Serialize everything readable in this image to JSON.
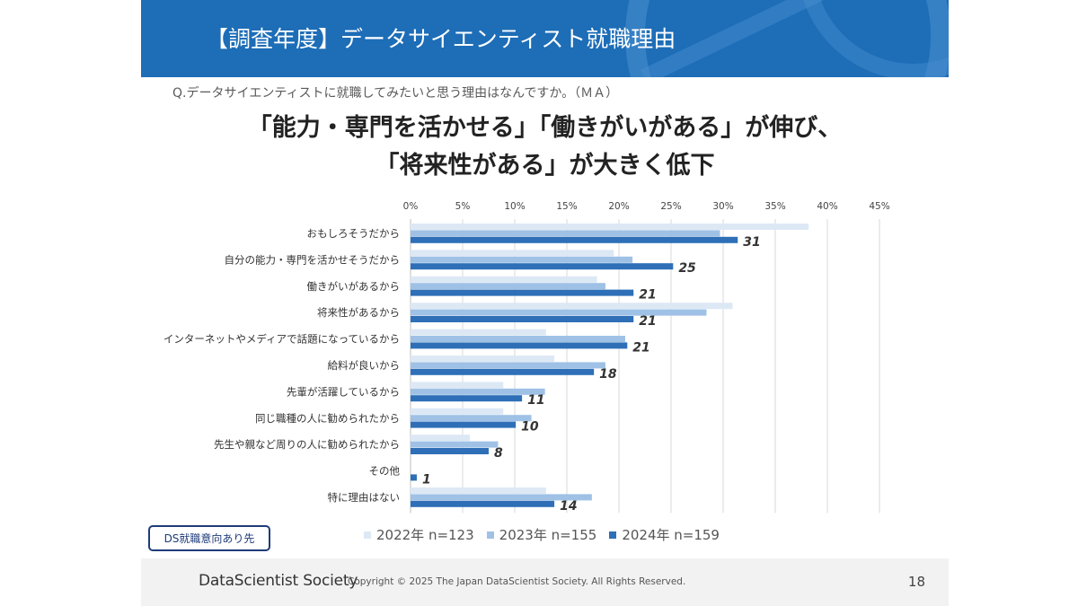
{
  "header": {
    "title": "【調査年度】データサイエンティスト就職理由",
    "accent_color": "#1d6db7"
  },
  "question": "Q.データサイエンティストに就職してみたいと思う理由はなんですか。（ＭＡ）",
  "headline": {
    "line1": "「能力・専門を活かせる」「働きがいがある」が伸び、",
    "line2": "「将来性がある」が大きく低下"
  },
  "badge": "DS就職意向あり先",
  "chart_data": {
    "type": "bar",
    "orientation": "horizontal",
    "categories": [
      "おもしろそうだから",
      "自分の能力・専門を活かせそうだから",
      "働きがいがあるから",
      "将来性があるから",
      "インターネットやメディアで話題になっているから",
      "給料が良いから",
      "先輩が活躍しているから",
      "同じ職種の人に勧められたから",
      "先生や親など周りの人に勧められたから",
      "その他",
      "特に理由はない"
    ],
    "series": [
      {
        "name": "2022年 n=123",
        "color": "#dde8f5",
        "values": [
          38.2,
          19.5,
          17.9,
          30.9,
          13.0,
          13.8,
          8.9,
          8.9,
          5.7,
          0,
          13.0
        ]
      },
      {
        "name": "2023年 n=155",
        "color": "#9fc1e6",
        "values": [
          29.7,
          21.3,
          18.7,
          28.4,
          20.6,
          18.7,
          12.9,
          11.6,
          8.4,
          0,
          17.4
        ]
      },
      {
        "name": "2024年 n=159",
        "color": "#2e6fb7",
        "values": [
          31.4,
          25.2,
          21.4,
          21.4,
          20.8,
          17.6,
          10.7,
          10.1,
          7.5,
          0.6,
          13.8
        ]
      }
    ],
    "data_labels": [
      "31",
      "25",
      "21",
      "21",
      "21",
      "18",
      "11",
      "10",
      "8",
      "1",
      "14"
    ],
    "x_ticks": [
      0,
      5,
      10,
      15,
      20,
      25,
      30,
      35,
      40,
      45
    ],
    "tick_suffix": "%",
    "xlim": [
      0,
      45
    ],
    "grid": true,
    "legend_position": "bottom"
  },
  "footer": {
    "brand": "DataScientist Society",
    "copyright": "Copyright © 2025  The Japan DataScientist Society. All Rights Reserved.",
    "page_number": "18"
  }
}
